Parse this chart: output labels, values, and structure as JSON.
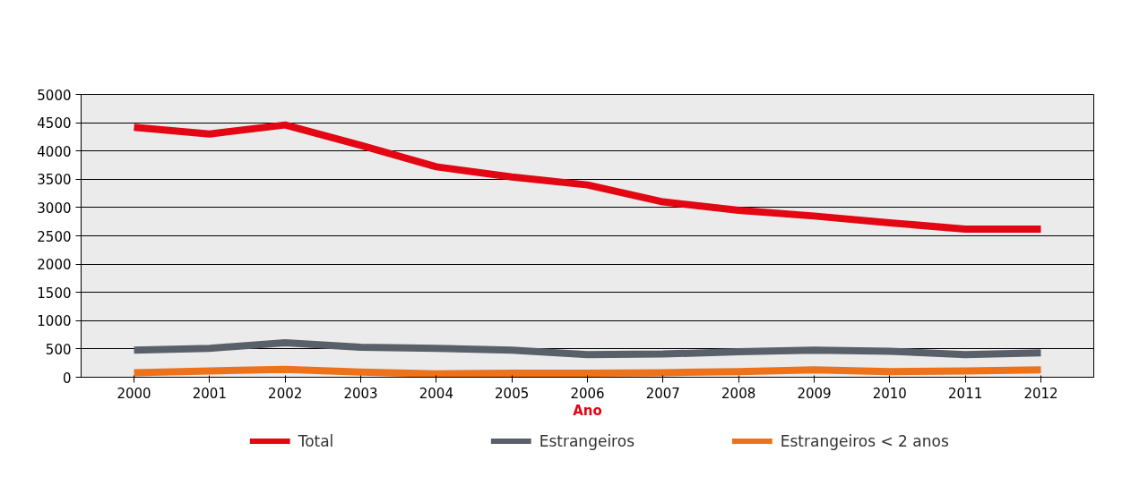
{
  "chart_data": {
    "type": "line",
    "xlabel": "Ano",
    "categories": [
      "2000",
      "2001",
      "2002",
      "2003",
      "2004",
      "2005",
      "2006",
      "2007",
      "2008",
      "2009",
      "2010",
      "2011",
      "2012"
    ],
    "series": [
      {
        "name": "Total",
        "color": "#e30613",
        "values": [
          4420,
          4300,
          4460,
          4100,
          3720,
          3540,
          3400,
          3100,
          2950,
          2850,
          2730,
          2620,
          2620
        ]
      },
      {
        "name": "Estrangeiros",
        "color": "#5a6069",
        "values": [
          480,
          510,
          610,
          530,
          510,
          480,
          400,
          410,
          450,
          480,
          460,
          400,
          430
        ]
      },
      {
        "name": "Estrangeiros < 2 anos",
        "color": "#ee7219",
        "values": [
          80,
          110,
          140,
          90,
          60,
          70,
          70,
          80,
          100,
          130,
          100,
          110,
          130
        ]
      }
    ],
    "ylim": [
      0,
      5000
    ],
    "yticks": [
      0,
      500,
      1000,
      1500,
      2000,
      2500,
      3000,
      3500,
      4000,
      4500,
      5000
    ],
    "grid": "y",
    "legend": "bottom",
    "marker": "none",
    "line_style": "solid"
  }
}
